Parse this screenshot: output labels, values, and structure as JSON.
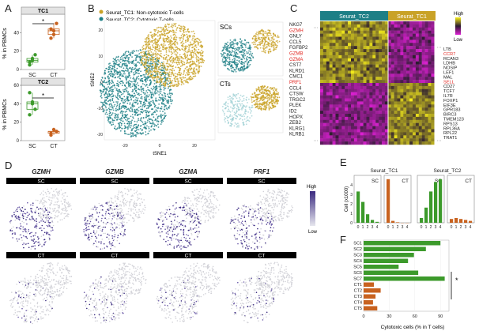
{
  "colors": {
    "tc1": "#c9a227",
    "tc2": "#1d7f86",
    "green": "#3c9a2b",
    "orange": "#c8621f",
    "purple": "#5b4a9b",
    "heat_high": "#f7ee1a",
    "heat_low": "#e01fd6",
    "heat_mid": "#2a1b2e"
  },
  "panel_letters": {
    "a": "A",
    "b": "B",
    "c": "C",
    "d": "D",
    "e": "E",
    "f": "F"
  },
  "panelA": {
    "ylabel": "% in PBMCs",
    "sig": "*",
    "chart_data": [
      {
        "type": "scatter",
        "title": "TC1",
        "categories": [
          "SC",
          "CT"
        ],
        "ylim": [
          0,
          60
        ],
        "yticks": [
          0,
          20,
          40
        ],
        "series": [
          {
            "values": [
              5,
              12,
              16,
              8,
              10
            ]
          },
          {
            "values": [
              34,
              38,
              50,
              44,
              42
            ]
          }
        ]
      },
      {
        "type": "scatter",
        "title": "TC2",
        "categories": [
          "SC",
          "CT"
        ],
        "ylim": [
          0,
          60
        ],
        "yticks": [
          0,
          20,
          40,
          60
        ],
        "series": [
          {
            "values": [
              52,
              42,
              34,
              28,
              40
            ]
          },
          {
            "values": [
              8,
              12,
              10,
              6
            ]
          }
        ]
      }
    ]
  },
  "panelB": {
    "legend": [
      "Seurat_TC1: Non-cytotoxic T-cells",
      "Seurat_TC2: Cytotoxic T-cells"
    ],
    "xlabel": "tSNE1",
    "ylabel": "tSNE2",
    "yticks": [
      "20",
      "10",
      "0",
      "-10",
      "-20"
    ],
    "xticks": [
      "-20",
      "0",
      "20"
    ],
    "sub_sc": "SCs",
    "sub_ct": "CTs"
  },
  "panelC": {
    "col_labels": [
      "Seurat_TC2",
      "Seurat_TC1"
    ],
    "legend_high": "High",
    "legend_low": "Low",
    "genes_left": [
      {
        "name": "NKG7",
        "red": false
      },
      {
        "name": "GZMH",
        "red": true
      },
      {
        "name": "GNLY",
        "red": false
      },
      {
        "name": "CCL5",
        "red": false
      },
      {
        "name": "FGFBP2",
        "red": false
      },
      {
        "name": "GZMB",
        "red": true
      },
      {
        "name": "GZMA",
        "red": true
      },
      {
        "name": "CST7",
        "red": false
      },
      {
        "name": "KLRD1",
        "red": false
      },
      {
        "name": "CMC1",
        "red": false
      },
      {
        "name": "PRF1",
        "red": true
      },
      {
        "name": "CCL4",
        "red": false
      },
      {
        "name": "CTSW",
        "red": false
      },
      {
        "name": "TRGC2",
        "red": false
      },
      {
        "name": "PLEK",
        "red": false
      },
      {
        "name": "ID2",
        "red": false
      },
      {
        "name": "HOPX",
        "red": false
      },
      {
        "name": "ZEB2",
        "red": false
      },
      {
        "name": "KLRG1",
        "red": false
      },
      {
        "name": "KLRB1",
        "red": false
      }
    ],
    "genes_right": [
      {
        "name": "LTB",
        "red": false
      },
      {
        "name": "CCR7",
        "red": true
      },
      {
        "name": "RCAN3",
        "red": false
      },
      {
        "name": "LDHB",
        "red": false
      },
      {
        "name": "NOSIP",
        "red": false
      },
      {
        "name": "LEF1",
        "red": false
      },
      {
        "name": "MAL",
        "red": false
      },
      {
        "name": "SELL",
        "red": true
      },
      {
        "name": "CD27",
        "red": false
      },
      {
        "name": "TCF7",
        "red": false
      },
      {
        "name": "IL7R",
        "red": false
      },
      {
        "name": "FOXP1",
        "red": false
      },
      {
        "name": "EIF3E",
        "red": false
      },
      {
        "name": "GPR183",
        "red": false
      },
      {
        "name": "BIRC3",
        "red": false
      },
      {
        "name": "TMEM123",
        "red": false
      },
      {
        "name": "RPS13",
        "red": false
      },
      {
        "name": "RPL36A",
        "red": false
      },
      {
        "name": "RPL22",
        "red": false
      },
      {
        "name": "TRAT1",
        "red": false
      }
    ]
  },
  "panelD": {
    "genes": [
      "GZMH",
      "GZMB",
      "GZMA",
      "PRF1"
    ],
    "row_sc": "SC",
    "row_ct": "CT",
    "legend_high": "High",
    "legend_low": "Low"
  },
  "panelE": {
    "ylabel": "Cell (x1000)",
    "sc": "SC",
    "ct": "CT",
    "yticks": [
      "0",
      "1",
      "2",
      "3",
      "4"
    ],
    "xticks": [
      "0",
      "1",
      "2",
      "3",
      "4"
    ],
    "chart_data": [
      {
        "type": "bar",
        "title": "Seurat_TC1",
        "ylim": [
          0,
          5
        ],
        "categories": [
          "0",
          "1",
          "2",
          "3",
          "4"
        ],
        "series": [
          {
            "name": "SC",
            "values": [
              3.3,
              2.2,
              0.9,
              0.3,
              0.1
            ]
          },
          {
            "name": "CT",
            "values": [
              4.6,
              0.2,
              0.05,
              0.0,
              0.0
            ]
          }
        ]
      },
      {
        "type": "bar",
        "title": "Seurat_TC2",
        "ylim": [
          0,
          5
        ],
        "categories": [
          "0",
          "1",
          "2",
          "3",
          "4"
        ],
        "series": [
          {
            "name": "SC",
            "values": [
              0.5,
              1.6,
              3.3,
              4.3,
              4.6
            ]
          },
          {
            "name": "CT",
            "values": [
              0.4,
              0.5,
              0.4,
              0.3,
              0.2
            ]
          }
        ]
      }
    ]
  },
  "panelF": {
    "xlabel": "Cytotoxic cells (% in T cells)",
    "sig": "*",
    "chart_data": {
      "type": "bar",
      "categories": [
        "SC1",
        "SC2",
        "SC3",
        "SC4",
        "SC5",
        "SC6",
        "SC7",
        "CT1",
        "CT2",
        "CT3",
        "CT4",
        "CT5"
      ],
      "values": [
        90,
        73,
        59,
        52,
        41,
        64,
        95,
        12,
        20,
        14,
        11,
        16
      ],
      "xlim": [
        0,
        100
      ],
      "xticks": [
        0,
        30,
        60,
        90
      ]
    }
  }
}
